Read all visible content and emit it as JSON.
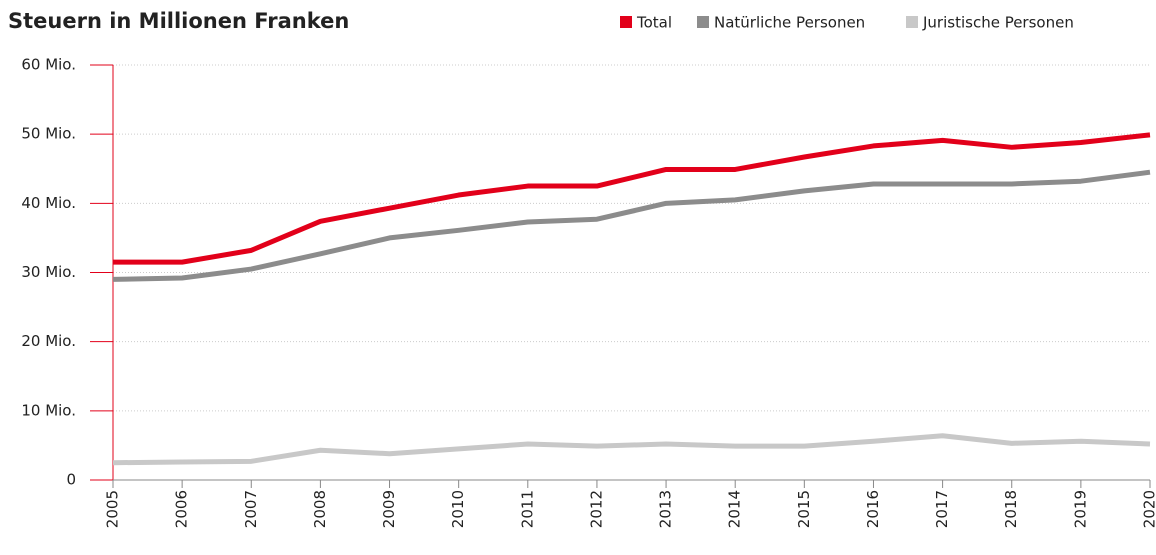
{
  "chart_data": {
    "type": "line",
    "title": "Steuern in Millionen Franken",
    "x": [
      2005,
      2006,
      2007,
      2008,
      2009,
      2010,
      2011,
      2012,
      2013,
      2014,
      2015,
      2016,
      2017,
      2018,
      2019,
      2020
    ],
    "xlim": [
      2005,
      2020
    ],
    "xticks": [
      2005,
      2006,
      2007,
      2008,
      2009,
      2010,
      2011,
      2012,
      2013,
      2014,
      2015,
      2016,
      2017,
      2018,
      2019,
      2020
    ],
    "ylim": [
      0,
      60
    ],
    "yticks": [
      0,
      {
        "value": 10,
        "label": "10 Mio."
      },
      {
        "value": 20,
        "label": "20 Mio."
      },
      {
        "value": 30,
        "label": "30 Mio."
      },
      {
        "value": 40,
        "label": "40 Mio."
      },
      {
        "value": 50,
        "label": "50 Mio."
      },
      {
        "value": 60,
        "label": "60 Mio."
      }
    ],
    "grid": true,
    "legend": "top-right",
    "series": [
      {
        "name": "Total",
        "color": "#e2001a",
        "values": [
          31.5,
          31.5,
          33.2,
          37.4,
          39.3,
          41.2,
          42.5,
          42.5,
          44.9,
          44.9,
          46.7,
          48.3,
          49.1,
          48.1,
          48.8,
          49.9
        ]
      },
      {
        "name": "Natürliche Personen",
        "color": "#8c8c8c",
        "values": [
          29.0,
          29.2,
          30.5,
          32.7,
          35.0,
          36.1,
          37.3,
          37.7,
          40.0,
          40.5,
          41.8,
          42.8,
          42.8,
          42.8,
          43.2,
          44.5
        ]
      },
      {
        "name": "Juristische Personen",
        "color": "#c8c8c8",
        "values": [
          2.5,
          2.6,
          2.7,
          4.3,
          3.8,
          4.5,
          5.2,
          4.9,
          5.2,
          4.9,
          4.9,
          5.6,
          6.4,
          5.3,
          5.6,
          5.2
        ]
      }
    ]
  }
}
